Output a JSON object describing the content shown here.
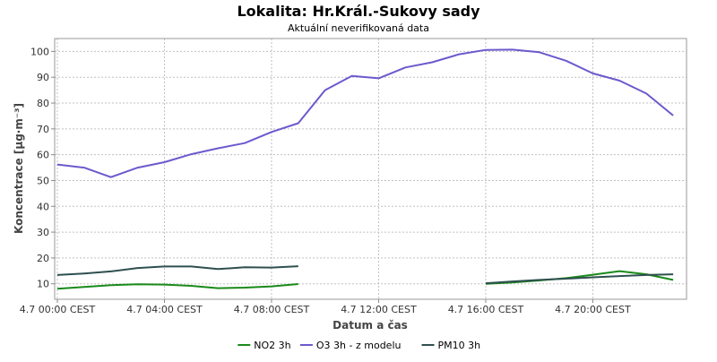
{
  "chart_data": {
    "type": "line",
    "title": "Lokalita: Hr.Král.-Sukovy sady",
    "subtitle": "Aktuální neverifikovaná data",
    "xlabel": "Datum a čas",
    "ylabel": "Koncentrace [µg·m⁻³]",
    "ylim": [
      4,
      105
    ],
    "yticks": [
      10,
      20,
      30,
      40,
      50,
      60,
      70,
      80,
      90,
      100
    ],
    "xlim": [
      -0.1,
      23.5
    ],
    "xticks": [
      {
        "x": 0,
        "label": "4.7 00:00 CEST"
      },
      {
        "x": 4,
        "label": "4.7 04:00 CEST"
      },
      {
        "x": 8,
        "label": "4.7 08:00 CEST"
      },
      {
        "x": 12,
        "label": "4.7 12:00 CEST"
      },
      {
        "x": 16,
        "label": "4.7 16:00 CEST"
      },
      {
        "x": 20,
        "label": "4.7 20:00 CEST"
      }
    ],
    "grid": true,
    "legend_position": "bottom",
    "series": [
      {
        "name": "NO2 3h",
        "color": "#1a8a1a",
        "points": [
          [
            0,
            8.1
          ],
          [
            1,
            8.8
          ],
          [
            2,
            9.5
          ],
          [
            3,
            9.8
          ],
          [
            4,
            9.7
          ],
          [
            5,
            9.2
          ],
          [
            6,
            8.3
          ],
          [
            7,
            8.5
          ],
          [
            8,
            9.0
          ],
          [
            9,
            9.9
          ],
          [
            16,
            10.0
          ],
          [
            17,
            10.5
          ],
          [
            18,
            11.3
          ],
          [
            19,
            12.2
          ],
          [
            20,
            13.5
          ],
          [
            21,
            14.9
          ],
          [
            22,
            13.7
          ],
          [
            23,
            11.5
          ]
        ]
      },
      {
        "name": "O3 3h - z modelu",
        "color": "#6a5acd",
        "points": [
          [
            0,
            56.2
          ],
          [
            1,
            55.0
          ],
          [
            2,
            51.3
          ],
          [
            3,
            55.0
          ],
          [
            4,
            57.1
          ],
          [
            5,
            60.2
          ],
          [
            6,
            62.5
          ],
          [
            7,
            64.5
          ],
          [
            8,
            68.8
          ],
          [
            9,
            72.2
          ],
          [
            10,
            85.0
          ],
          [
            11,
            90.5
          ],
          [
            12,
            89.6
          ],
          [
            13,
            93.8
          ],
          [
            14,
            95.8
          ],
          [
            15,
            98.9
          ],
          [
            16,
            100.6
          ],
          [
            17,
            100.7
          ],
          [
            18,
            99.7
          ],
          [
            19,
            96.4
          ],
          [
            20,
            91.5
          ],
          [
            21,
            88.7
          ],
          [
            22,
            83.7
          ],
          [
            23,
            75.2
          ]
        ]
      },
      {
        "name": "PM10 3h",
        "color": "#2f4f4f",
        "points": [
          [
            0,
            13.4
          ],
          [
            1,
            14.0
          ],
          [
            2,
            14.8
          ],
          [
            3,
            16.1
          ],
          [
            4,
            16.7
          ],
          [
            5,
            16.7
          ],
          [
            6,
            15.7
          ],
          [
            7,
            16.4
          ],
          [
            8,
            16.3
          ],
          [
            9,
            16.8
          ],
          [
            16,
            10.2
          ],
          [
            17,
            10.9
          ],
          [
            18,
            11.5
          ],
          [
            19,
            12.0
          ],
          [
            20,
            12.5
          ],
          [
            21,
            13.0
          ],
          [
            22,
            13.4
          ],
          [
            23,
            13.7
          ]
        ]
      }
    ]
  }
}
